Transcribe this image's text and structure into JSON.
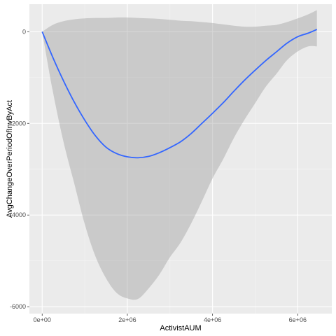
{
  "chart_data": {
    "type": "line",
    "xlabel": "ActivistAUM",
    "ylabel": "AvgChangeOverPeriodOfInvByAct",
    "xlim": [
      -300000,
      6800000
    ],
    "ylim": [
      -6150,
      600
    ],
    "x_ticks": [
      {
        "value": 0,
        "label": "0e+00"
      },
      {
        "value": 2000000,
        "label": "2e+06"
      },
      {
        "value": 4000000,
        "label": "4e+06"
      },
      {
        "value": 6000000,
        "label": "6e+06"
      }
    ],
    "y_ticks": [
      {
        "value": 0,
        "label": "0"
      },
      {
        "value": -2000,
        "label": "-2000"
      },
      {
        "value": -4000,
        "label": "-4000"
      },
      {
        "value": -6000,
        "label": "-6000"
      }
    ],
    "grid": true,
    "series": [
      {
        "kind": "smooth-line-with-confidence-band",
        "color": "#3366ff",
        "band_color": "#999999",
        "x": [
          0,
          250000,
          500000,
          750000,
          1000000,
          1250000,
          1500000,
          1750000,
          2000000,
          2250000,
          2500000,
          2750000,
          3000000,
          3250000,
          3500000,
          3750000,
          4000000,
          4250000,
          4500000,
          4750000,
          5000000,
          5250000,
          5500000,
          5750000,
          6000000,
          6250000,
          6450000
        ],
        "y": [
          0,
          -560,
          -1070,
          -1530,
          -1930,
          -2270,
          -2520,
          -2660,
          -2730,
          -2750,
          -2720,
          -2640,
          -2530,
          -2400,
          -2220,
          -2000,
          -1780,
          -1550,
          -1300,
          -1060,
          -840,
          -630,
          -440,
          -250,
          -110,
          -30,
          50
        ],
        "upper": [
          0,
          150,
          230,
          270,
          290,
          300,
          300,
          310,
          310,
          300,
          290,
          280,
          260,
          240,
          230,
          210,
          190,
          160,
          130,
          110,
          110,
          130,
          150,
          210,
          290,
          380,
          470
        ],
        "lower": [
          0,
          -1300,
          -2400,
          -3300,
          -4200,
          -4900,
          -5380,
          -5700,
          -5820,
          -5830,
          -5600,
          -5300,
          -4920,
          -4600,
          -4180,
          -3700,
          -3200,
          -2780,
          -2320,
          -1920,
          -1560,
          -1200,
          -920,
          -620,
          -430,
          -320,
          -320
        ]
      }
    ]
  }
}
